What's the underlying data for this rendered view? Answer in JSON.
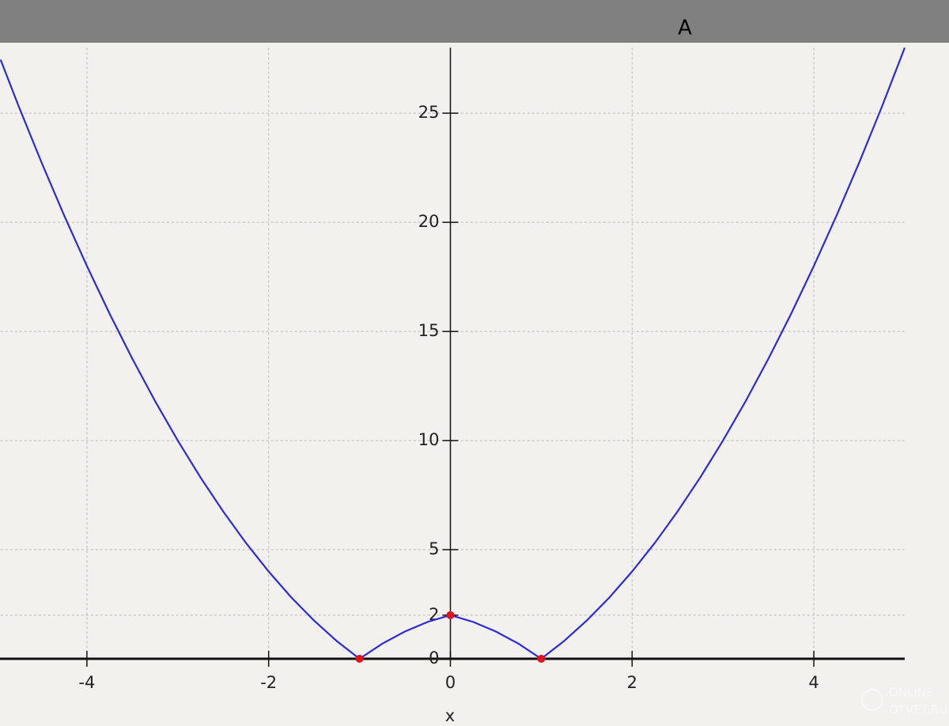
{
  "chart_data": {
    "type": "line",
    "title": "A",
    "x_label": "x",
    "x": [
      -4.95,
      -4.75,
      -4.5,
      -4.25,
      -4,
      -3.75,
      -3.5,
      -3.25,
      -3,
      -2.75,
      -2.5,
      -2.25,
      -2,
      -1.75,
      -1.5,
      -1.25,
      -1,
      -0.75,
      -0.5,
      -0.25,
      0,
      0.25,
      0.5,
      0.75,
      1,
      1.25,
      1.5,
      1.75,
      2,
      2.25,
      2.5,
      2.75,
      3,
      3.25,
      3.5,
      3.75,
      4,
      4.25,
      4.5,
      4.75,
      5
    ],
    "series": [
      {
        "color": "#2b2bdc",
        "values": [
          27.45,
          25.31,
          22.75,
          20.31,
          18,
          15.81,
          13.75,
          11.81,
          10,
          8.31,
          6.75,
          5.31,
          4,
          2.81,
          1.75,
          0.81,
          0,
          0.69,
          1.25,
          1.69,
          2,
          1.69,
          1.25,
          0.69,
          0,
          0.81,
          1.75,
          2.81,
          4,
          5.31,
          6.75,
          8.31,
          10,
          11.81,
          13.75,
          15.81,
          18,
          20.31,
          22.75,
          25.31,
          28
        ]
      }
    ],
    "points": {
      "color": "#e0121a",
      "x": [
        -1,
        0,
        1
      ],
      "values": [
        0,
        2,
        0
      ]
    },
    "xlim": [
      -4.95,
      5
    ],
    "ylim": [
      -1,
      28
    ],
    "xticks": [
      -4,
      -2,
      0,
      2,
      4
    ],
    "yticks": [
      0,
      2,
      5,
      10,
      15,
      20,
      25
    ],
    "grid": true
  },
  "watermark": [
    "ONLINE",
    "OTVET.RU"
  ]
}
